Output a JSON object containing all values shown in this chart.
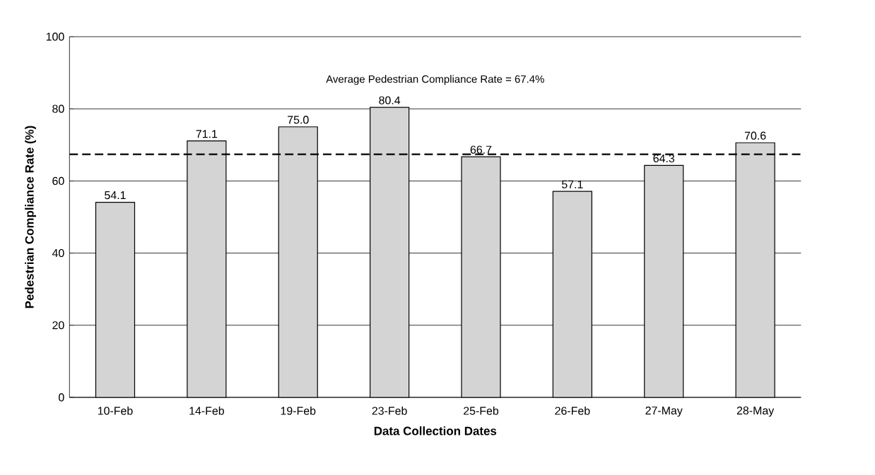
{
  "chart_data": {
    "type": "bar",
    "xlabel": "Data Collection Dates",
    "ylabel": "Pedestrian Compliance Rate (%)",
    "categories": [
      "10-Feb",
      "14-Feb",
      "19-Feb",
      "23-Feb",
      "25-Feb",
      "26-Feb",
      "27-May",
      "28-May"
    ],
    "values": [
      54.1,
      71.1,
      75.0,
      80.4,
      66.7,
      57.1,
      64.3,
      70.6
    ],
    "value_labels": [
      "54.1",
      "71.1",
      "75.0",
      "80.4",
      "66.7",
      "57.1",
      "64.3",
      "70.6"
    ],
    "color": "#d4d4d4",
    "ylim": [
      0,
      100
    ],
    "yticks": [
      0,
      20,
      40,
      60,
      80,
      100
    ],
    "grid": "y",
    "ref_lines": [
      {
        "axis": "y",
        "value": 67.4,
        "label": "Average Pedestrian Compliance Rate = 67.4%",
        "line_style": "dashed",
        "color": "#000000"
      }
    ]
  }
}
